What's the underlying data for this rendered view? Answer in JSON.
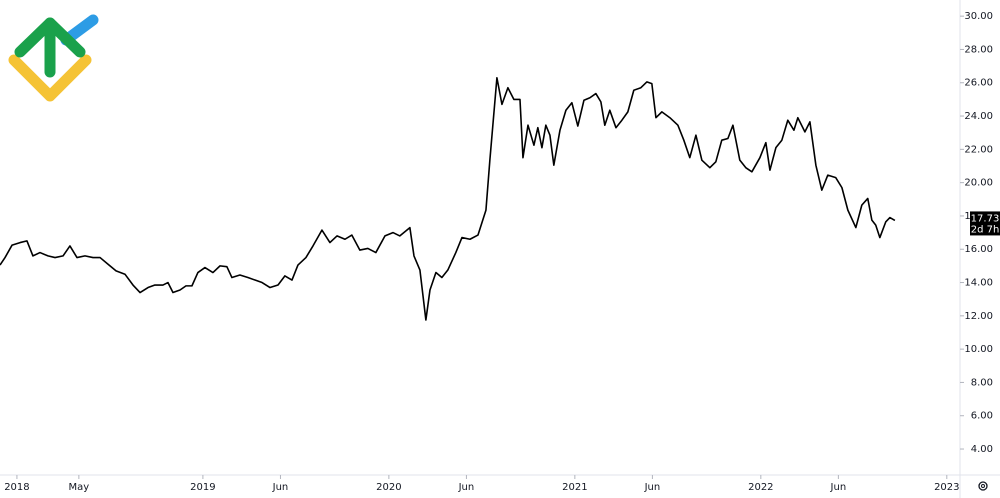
{
  "chart_data": {
    "type": "line",
    "xlim": [
      2017.909,
      2023.071
    ],
    "ylim": [
      2.44,
      30.97
    ],
    "xticks": [
      2018,
      {
        "value": 2018.333,
        "label": "May"
      },
      2019,
      {
        "value": 2019.417,
        "label": "Jun"
      },
      2020,
      {
        "value": 2020.417,
        "label": "Jun"
      },
      2021,
      {
        "value": 2021.417,
        "label": "Jun"
      },
      2022,
      {
        "value": 2022.417,
        "label": "Jun"
      },
      2023
    ],
    "yticks": [
      {
        "value": 4,
        "label": "4.00"
      },
      {
        "value": 6,
        "label": "6.00"
      },
      {
        "value": 8,
        "label": "8.00"
      },
      {
        "value": 10,
        "label": "10.00"
      },
      {
        "value": 12,
        "label": "12.00"
      },
      {
        "value": 14,
        "label": "14.00"
      },
      {
        "value": 16,
        "label": "16.00"
      },
      {
        "value": 18,
        "label": "18.00"
      },
      {
        "value": 20,
        "label": "20.00"
      },
      {
        "value": 22,
        "label": "22.00"
      },
      {
        "value": 24,
        "label": "24.00"
      },
      {
        "value": 26,
        "label": "26.00"
      },
      {
        "value": 28,
        "label": "28.00"
      },
      {
        "value": 30,
        "label": "30.00"
      }
    ],
    "current_price": 17.73,
    "countdown": "2d 7h",
    "series": [
      {
        "color": "#000000",
        "x": [
          2017.909,
          2017.936,
          2017.974,
          2018.017,
          2018.054,
          2018.086,
          2018.124,
          2018.167,
          2018.205,
          2018.248,
          2018.285,
          2018.323,
          2018.366,
          2018.409,
          2018.447,
          2018.49,
          2018.533,
          2018.581,
          2018.624,
          2018.662,
          2018.705,
          2018.742,
          2018.785,
          2018.812,
          2018.839,
          2018.877,
          2018.909,
          2018.941,
          2018.973,
          2019.011,
          2019.054,
          2019.092,
          2019.129,
          2019.156,
          2019.199,
          2019.242,
          2019.28,
          2019.318,
          2019.361,
          2019.404,
          2019.441,
          2019.479,
          2019.511,
          2019.554,
          2019.592,
          2019.64,
          2019.683,
          2019.721,
          2019.764,
          2019.801,
          2019.844,
          2019.887,
          2019.93,
          2019.979,
          2020.022,
          2020.059,
          2020.113,
          2020.135,
          2020.167,
          2020.199,
          2020.221,
          2020.253,
          2020.285,
          2020.317,
          2020.36,
          2020.393,
          2020.436,
          2020.479,
          2020.522,
          2020.543,
          2020.581,
          2020.608,
          2020.64,
          2020.672,
          2020.705,
          2020.721,
          2020.748,
          2020.78,
          2020.801,
          2020.823,
          2020.844,
          2020.866,
          2020.887,
          2020.92,
          2020.952,
          2020.984,
          2021.016,
          2021.049,
          2021.081,
          2021.113,
          2021.14,
          2021.161,
          2021.188,
          2021.221,
          2021.253,
          2021.285,
          2021.317,
          2021.355,
          2021.387,
          2021.414,
          2021.436,
          2021.468,
          2021.511,
          2021.554,
          2021.586,
          2021.618,
          2021.651,
          2021.683,
          2021.726,
          2021.758,
          2021.79,
          2021.823,
          2021.85,
          2021.887,
          2021.919,
          2021.952,
          2021.995,
          2022.027,
          2022.049,
          2022.081,
          2022.113,
          2022.145,
          2022.178,
          2022.199,
          2022.237,
          2022.264,
          2022.296,
          2022.328,
          2022.36,
          2022.403,
          2022.436,
          2022.468,
          2022.511,
          2022.543,
          2022.575,
          2022.597,
          2022.618,
          2022.64,
          2022.672,
          2022.694,
          2022.721
        ],
        "values": [
          15.05,
          15.5,
          16.25,
          16.4,
          16.5,
          15.6,
          15.8,
          15.6,
          15.5,
          15.6,
          16.2,
          15.5,
          15.6,
          15.5,
          15.5,
          15.1,
          14.7,
          14.5,
          13.85,
          13.4,
          13.7,
          13.85,
          13.85,
          14.0,
          13.4,
          13.55,
          13.8,
          13.8,
          14.6,
          14.9,
          14.6,
          15.0,
          14.95,
          14.3,
          14.45,
          14.3,
          14.15,
          14.0,
          13.7,
          13.85,
          14.4,
          14.15,
          15.05,
          15.5,
          16.2,
          17.15,
          16.4,
          16.8,
          16.6,
          16.85,
          15.95,
          16.05,
          15.8,
          16.8,
          17.0,
          16.8,
          17.3,
          15.6,
          14.75,
          11.75,
          13.55,
          14.6,
          14.3,
          14.75,
          15.8,
          16.7,
          16.6,
          16.85,
          18.35,
          21.35,
          26.3,
          24.7,
          25.7,
          25.0,
          25.0,
          21.5,
          23.45,
          22.25,
          23.3,
          22.1,
          23.45,
          22.85,
          21.05,
          23.15,
          24.35,
          24.8,
          23.4,
          24.95,
          25.1,
          25.35,
          24.85,
          23.45,
          24.35,
          23.3,
          23.75,
          24.25,
          25.55,
          25.7,
          26.05,
          25.95,
          23.9,
          24.25,
          23.9,
          23.45,
          22.55,
          21.5,
          22.85,
          21.35,
          20.9,
          21.25,
          22.55,
          22.65,
          23.45,
          21.35,
          20.9,
          20.65,
          21.5,
          22.4,
          20.75,
          22.1,
          22.55,
          23.75,
          23.15,
          23.9,
          23.05,
          23.65,
          21.05,
          19.55,
          20.45,
          20.3,
          19.7,
          18.35,
          17.3,
          18.65,
          19.05,
          17.75,
          17.45,
          16.7,
          17.65,
          17.9,
          17.73
        ]
      }
    ]
  }
}
